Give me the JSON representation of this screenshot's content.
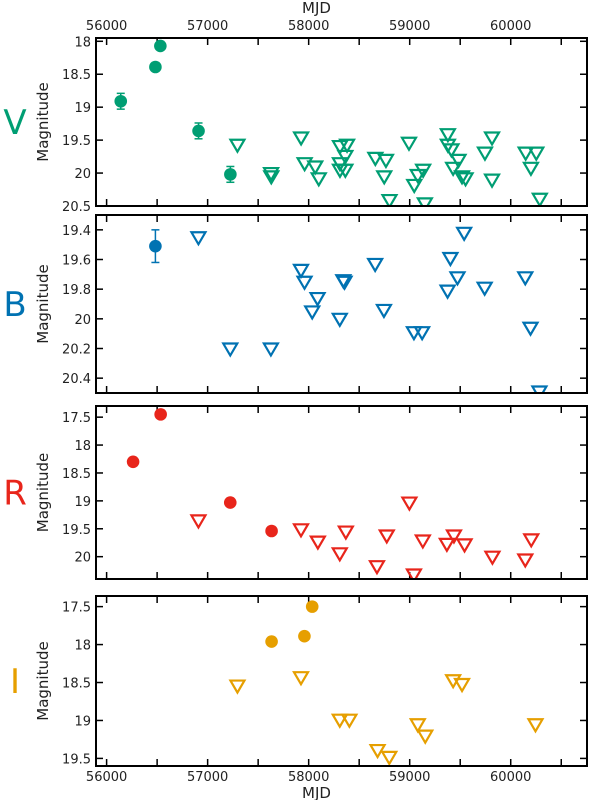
{
  "chart_data": [
    {
      "type": "scatter",
      "band": "V",
      "color": "#009e73",
      "xlabel": "MJD",
      "ylabel": "Magnitude",
      "xlim": [
        55895,
        60755
      ],
      "ylim": [
        17.95,
        20.5
      ],
      "y_inverted": true,
      "xticks": [
        56000,
        57000,
        58000,
        59000,
        60000
      ],
      "xtick_labels_position": "top",
      "yticks": [
        "18",
        "18.5",
        "19",
        "19.5",
        "20",
        "20.5"
      ],
      "detections": [
        [
          56140,
          18.91,
          0.12
        ],
        [
          56483,
          18.39,
          0.03
        ],
        [
          56532,
          18.07,
          0.03
        ],
        [
          56910,
          19.36,
          0.12
        ],
        [
          57225,
          20.02,
          0.12
        ]
      ],
      "upper_limits": [
        [
          57295,
          19.57
        ],
        [
          57628,
          20.0
        ],
        [
          57630,
          20.05
        ],
        [
          57925,
          19.46
        ],
        [
          57960,
          19.85
        ],
        [
          58065,
          19.9
        ],
        [
          58100,
          20.08
        ],
        [
          58310,
          19.59
        ],
        [
          58310,
          19.85
        ],
        [
          58310,
          19.95
        ],
        [
          58380,
          19.57
        ],
        [
          58363,
          19.74
        ],
        [
          58363,
          19.95
        ],
        [
          58660,
          19.77
        ],
        [
          58765,
          19.8
        ],
        [
          58748,
          20.05
        ],
        [
          58800,
          20.41
        ],
        [
          58993,
          19.54
        ],
        [
          59045,
          20.18
        ],
        [
          59080,
          20.03
        ],
        [
          59133,
          19.95
        ],
        [
          59150,
          20.46
        ],
        [
          59378,
          19.41
        ],
        [
          59378,
          19.57
        ],
        [
          59413,
          19.64
        ],
        [
          59430,
          19.92
        ],
        [
          59483,
          19.8
        ],
        [
          59518,
          20.05
        ],
        [
          59553,
          20.08
        ],
        [
          59745,
          19.69
        ],
        [
          59815,
          19.46
        ],
        [
          59815,
          20.1
        ],
        [
          60148,
          19.69
        ],
        [
          60253,
          19.69
        ],
        [
          60200,
          19.92
        ],
        [
          60288,
          20.39
        ]
      ]
    },
    {
      "type": "scatter",
      "band": "B",
      "color": "#0072b2",
      "ylabel": "Magnitude",
      "xlim": [
        55895,
        60755
      ],
      "ylim": [
        19.3,
        20.5
      ],
      "y_inverted": true,
      "xticks": [
        56000,
        57000,
        58000,
        59000,
        60000
      ],
      "yticks": [
        "19.4",
        "19.6",
        "19.8",
        "20",
        "20.2",
        "20.4"
      ],
      "detections": [
        [
          56483,
          19.51,
          0.11
        ]
      ],
      "upper_limits": [
        [
          56909,
          19.45
        ],
        [
          57224,
          20.2
        ],
        [
          57626,
          20.2
        ],
        [
          57924,
          19.67
        ],
        [
          57959,
          19.75
        ],
        [
          58088,
          19.86
        ],
        [
          58035,
          19.95
        ],
        [
          58308,
          20.0
        ],
        [
          58343,
          19.74
        ],
        [
          58355,
          19.75
        ],
        [
          58658,
          19.63
        ],
        [
          58745,
          19.94
        ],
        [
          59042,
          20.09
        ],
        [
          59123,
          20.09
        ],
        [
          59403,
          19.59
        ],
        [
          59375,
          19.81
        ],
        [
          59473,
          19.72
        ],
        [
          59539,
          19.42
        ],
        [
          59742,
          19.79
        ],
        [
          60144,
          19.72
        ],
        [
          60196,
          20.06
        ],
        [
          60284,
          20.49
        ]
      ]
    },
    {
      "type": "scatter",
      "band": "R",
      "color": "#e8251b",
      "ylabel": "Magnitude",
      "xlim": [
        55895,
        60755
      ],
      "ylim": [
        17.3,
        20.4
      ],
      "y_inverted": true,
      "xticks": [
        56000,
        57000,
        58000,
        59000,
        60000
      ],
      "yticks": [
        "17.5",
        "18",
        "18.5",
        "19",
        "19.5",
        "20"
      ],
      "detections": [
        [
          56262,
          18.3,
          0.03
        ],
        [
          56535,
          17.45,
          0.03
        ],
        [
          57224,
          19.03,
          0.03
        ],
        [
          57633,
          19.54,
          0.03
        ]
      ],
      "upper_limits": [
        [
          56909,
          19.35
        ],
        [
          57924,
          19.51
        ],
        [
          58091,
          19.73
        ],
        [
          58308,
          19.94
        ],
        [
          58368,
          19.55
        ],
        [
          58676,
          20.17
        ],
        [
          58773,
          19.62
        ],
        [
          58997,
          19.03
        ],
        [
          59042,
          20.32
        ],
        [
          59130,
          19.71
        ],
        [
          59368,
          19.77
        ],
        [
          59438,
          19.62
        ],
        [
          59543,
          19.78
        ],
        [
          59819,
          20.0
        ],
        [
          60144,
          20.05
        ],
        [
          60203,
          19.69
        ]
      ]
    },
    {
      "type": "scatter",
      "band": "I",
      "color": "#e69f00",
      "xlabel": "MJD",
      "ylabel": "Magnitude",
      "xlim": [
        55895,
        60755
      ],
      "ylim": [
        17.36,
        19.6
      ],
      "y_inverted": true,
      "xticks": [
        56000,
        57000,
        58000,
        59000,
        60000
      ],
      "xtick_labels_position": "bottom",
      "yticks": [
        "17.5",
        "18",
        "18.5",
        "19",
        "19.5"
      ],
      "detections": [
        [
          57633,
          17.96,
          0.03
        ],
        [
          57958,
          17.89,
          0.03
        ],
        [
          58035,
          17.5,
          0.03
        ]
      ],
      "upper_limits": [
        [
          57295,
          18.54
        ],
        [
          57924,
          18.43
        ],
        [
          58308,
          18.99
        ],
        [
          58403,
          18.99
        ],
        [
          58682,
          19.39
        ],
        [
          58798,
          19.48
        ],
        [
          59080,
          19.05
        ],
        [
          59154,
          19.2
        ],
        [
          59430,
          18.47
        ],
        [
          59518,
          18.52
        ],
        [
          60245,
          19.05
        ]
      ]
    }
  ]
}
